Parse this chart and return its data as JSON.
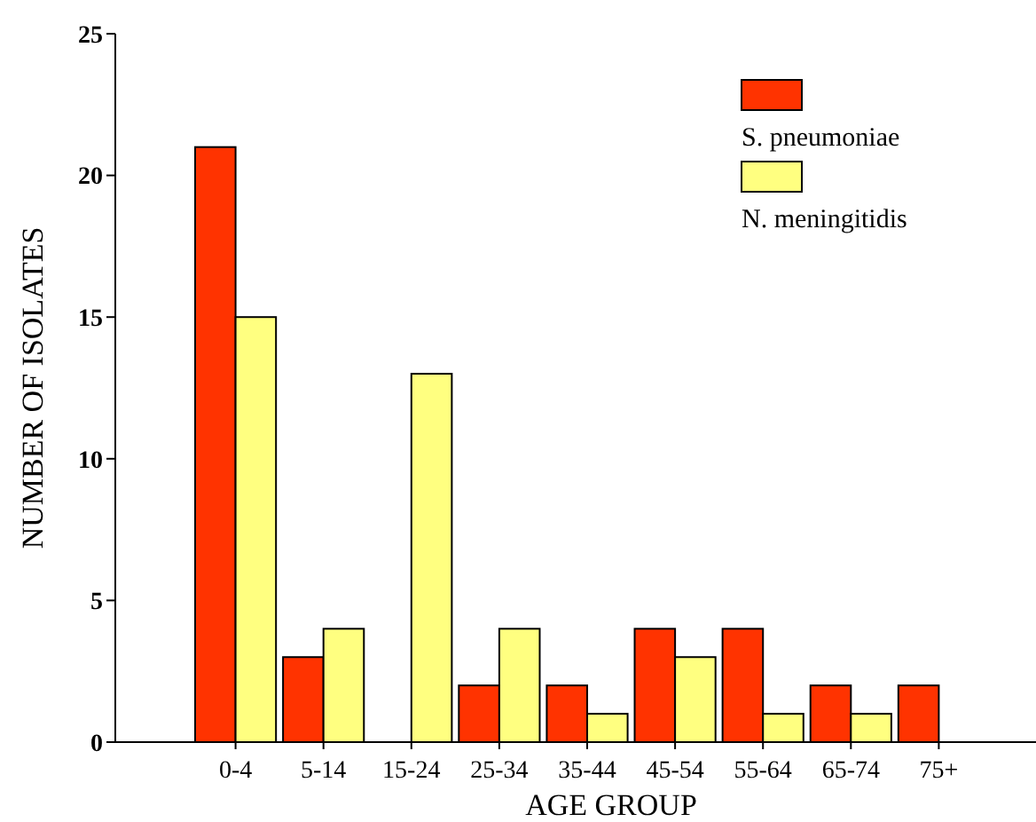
{
  "chart_data": {
    "type": "bar",
    "xlabel": "AGE GROUP",
    "ylabel": "NUMBER OF ISOLATES",
    "categories": [
      "0-4",
      "5-14",
      "15-24",
      "25-34",
      "35-44",
      "45-54",
      "55-64",
      "65-74",
      "75+"
    ],
    "series": [
      {
        "name": "S. pneumoniae",
        "color": "#ff3300",
        "values": [
          21,
          3,
          0,
          2,
          2,
          4,
          4,
          2,
          2
        ]
      },
      {
        "name": "N. meningitidis",
        "color": "#ffff80",
        "values": [
          15,
          4,
          13,
          4,
          1,
          3,
          1,
          1,
          0
        ]
      }
    ],
    "ylim": [
      0,
      25
    ],
    "yticks": [
      0,
      5,
      10,
      15,
      20,
      25
    ],
    "grid": false,
    "legend": "top right"
  }
}
